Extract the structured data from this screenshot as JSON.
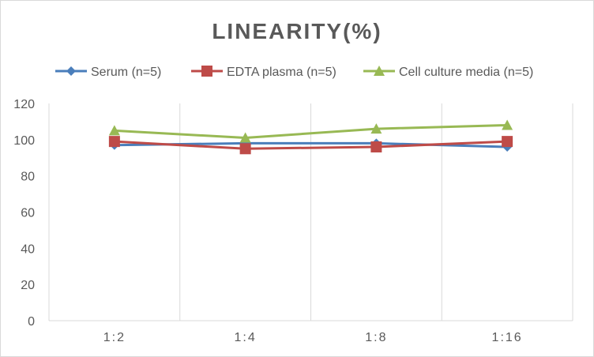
{
  "chart_data": {
    "type": "line",
    "title": "LINEARITY(%)",
    "xlabel": "",
    "ylabel": "",
    "categories": [
      "1:2",
      "1:4",
      "1:8",
      "1:16"
    ],
    "ylim": [
      0,
      120
    ],
    "yticks": [
      0,
      20,
      40,
      60,
      80,
      100,
      120
    ],
    "grid": "vertical",
    "legend_position": "top",
    "series": [
      {
        "name": "Serum (n=5)",
        "values": [
          97,
          98,
          98,
          96
        ],
        "color": "#4a7ebb",
        "marker": "diamond"
      },
      {
        "name": "EDTA plasma (n=5)",
        "values": [
          99,
          95,
          96,
          99
        ],
        "color": "#be4b48",
        "marker": "square"
      },
      {
        "name": "Cell culture media (n=5)",
        "values": [
          105,
          101,
          106,
          108
        ],
        "color": "#98b954",
        "marker": "triangle"
      }
    ]
  }
}
